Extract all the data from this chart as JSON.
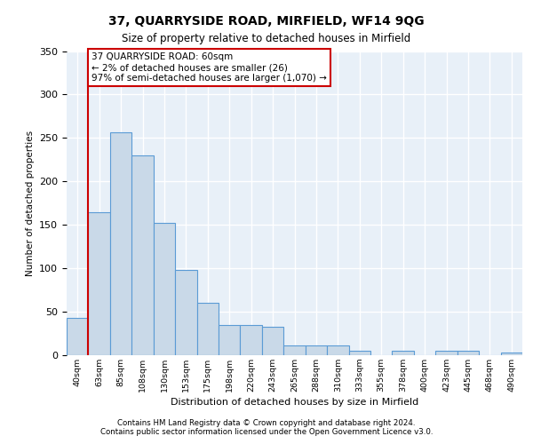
{
  "title1": "37, QUARRYSIDE ROAD, MIRFIELD, WF14 9QG",
  "title2": "Size of property relative to detached houses in Mirfield",
  "xlabel": "Distribution of detached houses by size in Mirfield",
  "ylabel": "Number of detached properties",
  "categories": [
    "40sqm",
    "63sqm",
    "85sqm",
    "108sqm",
    "130sqm",
    "153sqm",
    "175sqm",
    "198sqm",
    "220sqm",
    "243sqm",
    "265sqm",
    "288sqm",
    "310sqm",
    "333sqm",
    "355sqm",
    "378sqm",
    "400sqm",
    "423sqm",
    "445sqm",
    "468sqm",
    "490sqm"
  ],
  "values": [
    43,
    165,
    257,
    230,
    152,
    98,
    60,
    35,
    35,
    33,
    11,
    11,
    11,
    5,
    0,
    5,
    0,
    5,
    5,
    0,
    3
  ],
  "bar_color": "#c9d9e8",
  "bar_edge_color": "#5b9bd5",
  "annotation_box_text": "37 QUARRYSIDE ROAD: 60sqm\n← 2% of detached houses are smaller (26)\n97% of semi-detached houses are larger (1,070) →",
  "annotation_box_color": "#ffffff",
  "annotation_box_edge_color": "#cc0000",
  "red_line_x": 0.5,
  "ylim": [
    0,
    350
  ],
  "yticks": [
    0,
    50,
    100,
    150,
    200,
    250,
    300,
    350
  ],
  "background_color": "#e8f0f8",
  "grid_color": "#ffffff",
  "footer1": "Contains HM Land Registry data © Crown copyright and database right 2024.",
  "footer2": "Contains public sector information licensed under the Open Government Licence v3.0."
}
